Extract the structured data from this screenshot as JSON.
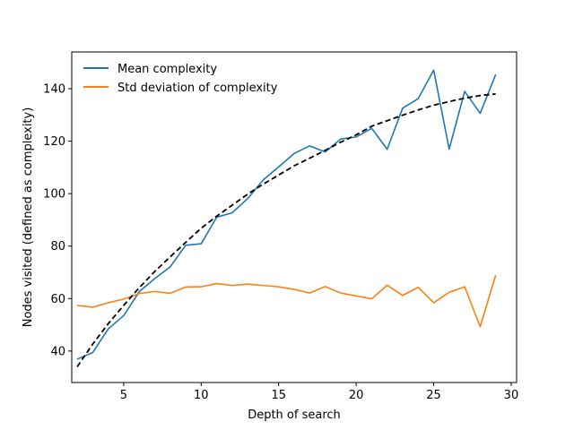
{
  "chart_data": {
    "type": "line",
    "title": "",
    "xlabel": "Depth of search",
    "ylabel": "Nodes visited (defined as complexity)",
    "xlim": [
      1.65,
      30.35
    ],
    "ylim": [
      28,
      154
    ],
    "xticks": [
      5,
      10,
      15,
      20,
      25,
      30
    ],
    "yticks": [
      40,
      60,
      80,
      100,
      120,
      140
    ],
    "grid": false,
    "legend_position": "top-left",
    "series": [
      {
        "name": "Mean complexity",
        "color": "#1f77b4",
        "style": "solid",
        "x": [
          2,
          3,
          4,
          5,
          6,
          7,
          8,
          9,
          10,
          11,
          12,
          13,
          14,
          15,
          16,
          17,
          18,
          19,
          20,
          21,
          22,
          23,
          24,
          25,
          26,
          27,
          28,
          29
        ],
        "y": [
          36.9,
          39.4,
          48.4,
          53.5,
          62.6,
          67.6,
          72.1,
          80.3,
          80.9,
          91.0,
          92.7,
          98.1,
          105.2,
          110.2,
          115.3,
          118.2,
          115.9,
          120.8,
          121.6,
          124.9,
          116.9,
          132.6,
          136.2,
          147.1,
          117.0,
          139.0,
          130.6,
          145.4
        ]
      },
      {
        "name": "Std deviation of complexity",
        "color": "#ff7f0e",
        "style": "solid",
        "x": [
          2,
          3,
          4,
          5,
          6,
          7,
          8,
          9,
          10,
          11,
          12,
          13,
          14,
          15,
          16,
          17,
          18,
          19,
          20,
          21,
          22,
          23,
          24,
          25,
          26,
          27,
          28,
          29
        ],
        "y": [
          57.4,
          56.7,
          58.4,
          59.8,
          61.9,
          62.7,
          62.0,
          64.4,
          64.5,
          65.7,
          65.0,
          65.5,
          65.0,
          64.5,
          63.5,
          62.1,
          64.6,
          62.1,
          61.0,
          59.9,
          65.1,
          61.2,
          64.3,
          58.4,
          62.4,
          64.5,
          49.3,
          68.9
        ]
      },
      {
        "name": "",
        "color": "#000000",
        "style": "dashed",
        "x": [
          2,
          3,
          4,
          5,
          6,
          7,
          8,
          9,
          10,
          11,
          12,
          13,
          14,
          15,
          16,
          17,
          18,
          19,
          20,
          21,
          22,
          23,
          24,
          25,
          26,
          27,
          28,
          29
        ],
        "y": [
          34.0,
          42.6,
          50.4,
          57.4,
          64.1,
          70.3,
          75.9,
          81.4,
          86.8,
          91.4,
          95.6,
          99.8,
          103.6,
          107.1,
          110.6,
          113.5,
          116.5,
          119.6,
          122.4,
          125.7,
          127.8,
          129.9,
          131.9,
          133.7,
          135.1,
          136.4,
          137.4,
          138.0
        ]
      }
    ]
  }
}
